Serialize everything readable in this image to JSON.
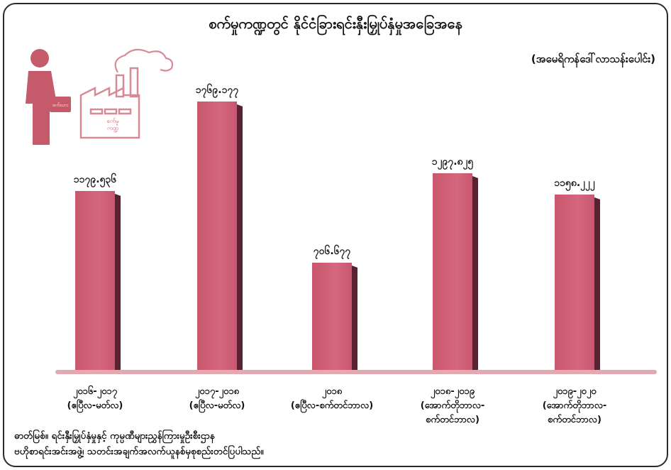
{
  "chart_data": {
    "type": "bar",
    "title": "စက်မှုကဏ္ဍတွင် နိုင်ငံခြားရင်းနှီးမြှုပ်နှံမှုအခြေအနေ",
    "unit_label": "(အမေရိကန်ဒေါ်လာသန်းပေါင်း)",
    "categories": [
      [
        "၂၀၁၆-၂၀၁၇",
        "(ဧပြီလ-မတ်လ)"
      ],
      [
        "၂၀၁၇-၂၀၁၈",
        "(ဧပြီလ-မတ်လ)"
      ],
      [
        "၂၀၁၈",
        "(ဧပြီလ-စက်တင်ဘာလ)"
      ],
      [
        "၂၀၁၈-၂၀၁၉",
        "(အောက်တိုဘာလ-",
        "စက်တင်ဘာလ)"
      ],
      [
        "၂၀၁၉-၂၀၂၀",
        "(အောက်တိုဘာလ-",
        "စက်တင်ဘာလ)"
      ]
    ],
    "values": [
      1179.536,
      1769.177,
      706.677,
      1297.825,
      1158.222
    ],
    "value_labels": [
      "၁၁၇၉.၅၃၆",
      "၁၇၆၉.၁၇၇",
      "၇၀၆.၆၇၇",
      "၁၂၉၇.၈၂၅",
      "၁၁၅၈.၂၂၂"
    ],
    "ylim": [
      0,
      1850
    ],
    "grid": false,
    "bar_color": "#cf5f76"
  },
  "source_text": [
    "ဓာတ်မြစ်။  ရင်းနှီးမြှုပ်နှံမှုနှင့် ကုမ္ပဏီများညွှန်ကြားမှုဦးစီးဌာန",
    "ဗဟိုစာရင်းအင်းအဖွဲ့၊ သတင်းအချက်အလက်ယူနစ်မှစုစည်းတင်ပြပါသည်။"
  ],
  "illustration": {
    "briefcase_label": "စက်သား",
    "factory_label": [
      "စက်မှု",
      "ကဏ္ဍ"
    ],
    "icons": [
      "businessman-icon",
      "factory-icon"
    ]
  }
}
